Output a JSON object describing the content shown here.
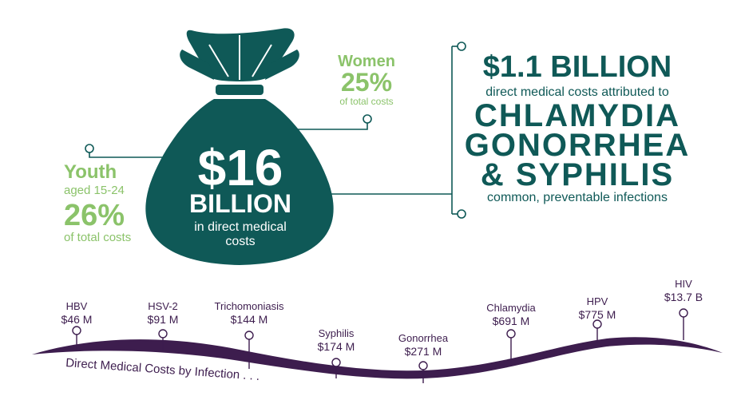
{
  "bag": {
    "amount": "$16",
    "unit": "BILLION",
    "line1": "in direct medical",
    "line2": "costs"
  },
  "women": {
    "title": "Women",
    "percent": "25%",
    "caption": "of total costs"
  },
  "youth": {
    "title": "Youth",
    "subtitle": "aged 15-24",
    "percent": "26%",
    "caption": "of total costs"
  },
  "right_panel": {
    "amount": "$1.1 BILLION",
    "subtitle": "direct medical costs attributed to",
    "line1": "CHLAMYDIA",
    "line2": "GONORRHEA",
    "line3": "& SYPHILIS",
    "footer": "common, preventable infections"
  },
  "timeline": {
    "label": "Direct Medical Costs by Infection . . .",
    "items": [
      {
        "name": "HBV",
        "value": "$46 M"
      },
      {
        "name": "HSV-2",
        "value": "$91 M"
      },
      {
        "name": "Trichomoniasis",
        "value": "$144 M"
      },
      {
        "name": "Syphilis",
        "value": "$174 M"
      },
      {
        "name": "Gonorrhea",
        "value": "$271 M"
      },
      {
        "name": "Chlamydia",
        "value": "$691 M"
      },
      {
        "name": "HPV",
        "value": "$775 M"
      },
      {
        "name": "HIV",
        "value": "$13.7 B"
      }
    ]
  },
  "colors": {
    "teal": "#0f5957",
    "green": "#8bc36a",
    "purple": "#3d1d4e"
  }
}
